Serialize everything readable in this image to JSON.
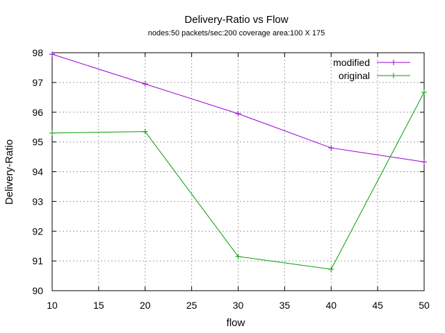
{
  "chart_data": {
    "type": "line",
    "title": "Delivery-Ratio vs Flow",
    "subtitle": "nodes:50  packets/sec:200 coverage area:100 X 175",
    "xlabel": "flow",
    "ylabel": "Delivery-Ratio",
    "xlim": [
      10,
      50
    ],
    "ylim": [
      90,
      98
    ],
    "xticks": [
      10,
      15,
      20,
      25,
      30,
      35,
      40,
      45,
      50
    ],
    "yticks": [
      90,
      91,
      92,
      93,
      94,
      95,
      96,
      97,
      98
    ],
    "grid": true,
    "legend_position": "top-right",
    "series": [
      {
        "name": "modified",
        "color": "#9400d3",
        "marker": "plus",
        "x": [
          10,
          20,
          30,
          40,
          50
        ],
        "y": [
          97.95,
          96.95,
          95.95,
          94.8,
          94.33
        ]
      },
      {
        "name": "original",
        "color": "#009e00",
        "marker": "plus",
        "x": [
          10,
          20,
          30,
          40,
          50
        ],
        "y": [
          95.3,
          95.35,
          91.15,
          90.72,
          96.67
        ]
      }
    ]
  }
}
